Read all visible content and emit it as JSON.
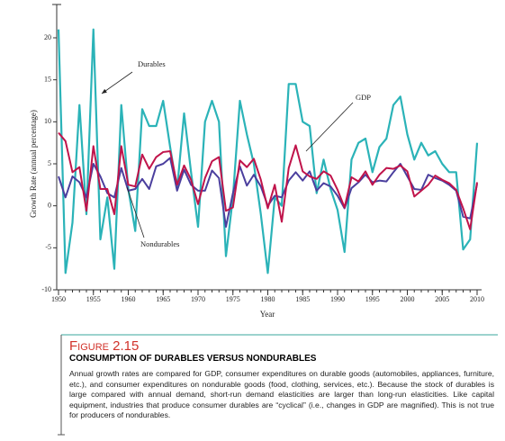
{
  "chart_data": {
    "type": "line",
    "x_label": "Year",
    "y_label": "Growth Rate (annual percentage)",
    "x": [
      1950,
      1951,
      1952,
      1953,
      1954,
      1955,
      1956,
      1957,
      1958,
      1959,
      1960,
      1961,
      1962,
      1963,
      1964,
      1965,
      1966,
      1967,
      1968,
      1969,
      1970,
      1971,
      1972,
      1973,
      1974,
      1975,
      1976,
      1977,
      1978,
      1979,
      1980,
      1981,
      1982,
      1983,
      1984,
      1985,
      1986,
      1987,
      1988,
      1989,
      1990,
      1991,
      1992,
      1993,
      1994,
      1995,
      1996,
      1997,
      1998,
      1999,
      2000,
      2001,
      2002,
      2003,
      2004,
      2005,
      2006,
      2007,
      2008,
      2009,
      2010
    ],
    "series": [
      {
        "name": "Durables",
        "color": "#2bb3b8",
        "values": [
          21,
          -8,
          -2,
          12,
          -1,
          21,
          -4,
          1,
          -7.5,
          12,
          2,
          -3,
          11.5,
          9.5,
          9.5,
          12.5,
          7,
          2,
          11,
          4,
          -2.5,
          10,
          12.5,
          10,
          -6,
          1,
          12.5,
          8.5,
          5,
          -1,
          -8,
          1,
          0,
          14.5,
          14.5,
          10,
          9.5,
          1.5,
          5.5,
          2,
          -0.5,
          -5.5,
          5.5,
          7.5,
          8,
          4,
          7,
          8,
          12,
          13,
          8.5,
          5.5,
          7.5,
          6,
          6.5,
          5,
          4,
          4,
          -5.2,
          -4,
          7.5
        ]
      },
      {
        "name": "Nondurables",
        "color": "#4b3f9e",
        "values": [
          3.5,
          1,
          3.5,
          2.8,
          1,
          5,
          3.5,
          1.5,
          1,
          4.5,
          1.8,
          2,
          3.2,
          2,
          4.7,
          5,
          5.7,
          1.8,
          4.3,
          2.5,
          1.8,
          1.8,
          4.2,
          3.3,
          -2.5,
          1.5,
          4.7,
          2.4,
          3.7,
          2.3,
          0,
          1.2,
          1,
          3,
          4,
          3,
          4.1,
          1.8,
          2.7,
          2.3,
          1.2,
          -0.3,
          2.1,
          2.8,
          3.7,
          2.8,
          3,
          2.9,
          4,
          5,
          3.5,
          2,
          1.9,
          3.7,
          3.3,
          3,
          2.5,
          1.8,
          -1.3,
          -1.5,
          2.6
        ]
      },
      {
        "name": "GDP",
        "color": "#c0134a",
        "values": [
          8.7,
          7.7,
          4,
          4.6,
          -0.6,
          7.1,
          2,
          2,
          -1,
          7.1,
          2.5,
          2.3,
          6.1,
          4.4,
          5.8,
          6.4,
          6.5,
          2.5,
          4.8,
          3.1,
          0.2,
          3.3,
          5.3,
          5.8,
          -0.6,
          -0.2,
          5.4,
          4.6,
          5.6,
          3.1,
          -0.3,
          2.5,
          -1.9,
          4.5,
          7.2,
          4.1,
          3.5,
          3.2,
          4.1,
          3.6,
          1.9,
          -0.2,
          3.4,
          2.9,
          4.1,
          2.5,
          3.7,
          4.5,
          4.4,
          4.8,
          4.1,
          1.1,
          1.8,
          2.5,
          3.6,
          3.1,
          2.7,
          1.9,
          -0.3,
          -2.8,
          2.8
        ]
      }
    ],
    "annotations": [
      {
        "text": "Durables"
      },
      {
        "text": "GDP"
      },
      {
        "text": "Nondurables"
      }
    ],
    "xlim": [
      1950,
      2010
    ],
    "xticks": [
      1950,
      1955,
      1960,
      1965,
      1970,
      1975,
      1980,
      1985,
      1990,
      1995,
      2000,
      2005,
      2010
    ],
    "ylim": [
      -10,
      20
    ],
    "yticks": [
      -10,
      -5,
      0,
      5,
      10,
      15,
      20
    ]
  },
  "caption": {
    "label": "Figure 2.15",
    "title": "CONSUMPTION OF DURABLES VERSUS NONDURABLES",
    "text": "Annual growth rates are compared for GDP, consumer expenditures on durable goods (automobiles, appliances, furniture, etc.), and consumer expenditures on nondurable goods (food, clothing, services, etc.). Because the stock of durables is large compared with annual demand, short-run demand elasticities are larger than long-run elasticities. Like capital equipment, industries that produce consumer durables are “cyclical” (i.e., changes in GDP are magnified). This is not true for producers of nondurables."
  }
}
